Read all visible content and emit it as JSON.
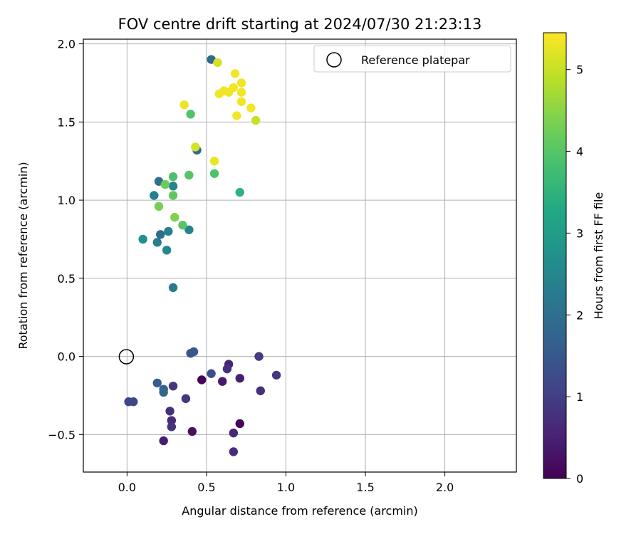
{
  "chart_data": {
    "type": "scatter",
    "title": "FOV centre drift starting at 2024/07/30 21:23:13",
    "xlabel": "Angular distance from reference (arcmin)",
    "ylabel": "Rotation from reference (arcmin)",
    "xlim": [
      -0.275,
      2.45
    ],
    "ylim": [
      -0.74,
      2.03
    ],
    "xticks": [
      0.0,
      0.5,
      1.0,
      1.5,
      2.0
    ],
    "xtick_labels": [
      "0.0",
      "0.5",
      "1.0",
      "1.5",
      "2.0"
    ],
    "yticks": [
      -0.5,
      0.0,
      0.5,
      1.0,
      1.5,
      2.0
    ],
    "ytick_labels": [
      "−0.5",
      "0.0",
      "0.5",
      "1.0",
      "1.5",
      "2.0"
    ],
    "grid": true,
    "legend": {
      "placement": "top-right",
      "entries": [
        "Reference platepar"
      ]
    },
    "reference_point": {
      "x": 0.0,
      "y": 0.0
    },
    "colorbar": {
      "label": "Hours from first FF file",
      "colormap": "viridis",
      "range": [
        0,
        5.45
      ],
      "ticks": [
        0,
        1,
        2,
        3,
        4,
        5
      ],
      "tick_labels": [
        "0",
        "1",
        "2",
        "3",
        "4",
        "5"
      ]
    },
    "points": [
      {
        "x": 0.47,
        "y": -0.15,
        "h": 0.05
      },
      {
        "x": 0.71,
        "y": -0.43,
        "h": 0.1
      },
      {
        "x": 0.41,
        "y": -0.48,
        "h": 0.25
      },
      {
        "x": 0.6,
        "y": -0.16,
        "h": 0.4
      },
      {
        "x": 0.23,
        "y": -0.54,
        "h": 0.45
      },
      {
        "x": 0.71,
        "y": -0.14,
        "h": 0.45
      },
      {
        "x": 0.64,
        "y": -0.05,
        "h": 0.55
      },
      {
        "x": 0.67,
        "y": -0.49,
        "h": 0.6
      },
      {
        "x": 0.28,
        "y": -0.41,
        "h": 0.65
      },
      {
        "x": 0.67,
        "y": -0.61,
        "h": 0.7
      },
      {
        "x": 0.27,
        "y": -0.35,
        "h": 0.75
      },
      {
        "x": 0.63,
        "y": -0.08,
        "h": 0.75
      },
      {
        "x": 0.84,
        "y": -0.22,
        "h": 0.75
      },
      {
        "x": 0.28,
        "y": -0.45,
        "h": 0.8
      },
      {
        "x": 0.37,
        "y": -0.27,
        "h": 0.85
      },
      {
        "x": 0.29,
        "y": -0.19,
        "h": 0.85
      },
      {
        "x": 0.94,
        "y": -0.12,
        "h": 0.9
      },
      {
        "x": 0.83,
        "y": 0.0,
        "h": 0.95
      },
      {
        "x": 0.01,
        "y": -0.29,
        "h": 1.1
      },
      {
        "x": 0.04,
        "y": -0.29,
        "h": 1.15
      },
      {
        "x": 0.53,
        "y": -0.11,
        "h": 1.3
      },
      {
        "x": 0.4,
        "y": 0.02,
        "h": 1.4
      },
      {
        "x": 0.42,
        "y": 0.03,
        "h": 1.5
      },
      {
        "x": 0.19,
        "y": -0.17,
        "h": 1.6
      },
      {
        "x": 0.23,
        "y": -0.21,
        "h": 1.7
      },
      {
        "x": 0.23,
        "y": -0.23,
        "h": 1.8
      },
      {
        "x": 0.53,
        "y": 1.9,
        "h": 1.85
      },
      {
        "x": 0.44,
        "y": 1.32,
        "h": 1.9
      },
      {
        "x": 0.21,
        "y": 0.78,
        "h": 1.95
      },
      {
        "x": 0.2,
        "y": 1.12,
        "h": 2.0
      },
      {
        "x": 0.29,
        "y": 0.44,
        "h": 2.2
      },
      {
        "x": 0.19,
        "y": 0.73,
        "h": 2.3
      },
      {
        "x": 0.17,
        "y": 1.03,
        "h": 2.35
      },
      {
        "x": 0.26,
        "y": 0.8,
        "h": 2.4
      },
      {
        "x": 0.39,
        "y": 0.81,
        "h": 2.4
      },
      {
        "x": 0.29,
        "y": 1.09,
        "h": 2.45
      },
      {
        "x": 0.25,
        "y": 0.68,
        "h": 2.55
      },
      {
        "x": 0.1,
        "y": 0.75,
        "h": 2.7
      },
      {
        "x": 0.71,
        "y": 1.05,
        "h": 3.5
      },
      {
        "x": 0.29,
        "y": 1.15,
        "h": 3.9
      },
      {
        "x": 0.55,
        "y": 1.17,
        "h": 3.9
      },
      {
        "x": 0.4,
        "y": 1.55,
        "h": 3.95
      },
      {
        "x": 0.39,
        "y": 1.16,
        "h": 4.0
      },
      {
        "x": 0.35,
        "y": 0.84,
        "h": 4.0
      },
      {
        "x": 0.29,
        "y": 1.03,
        "h": 4.1
      },
      {
        "x": 0.24,
        "y": 1.1,
        "h": 4.2
      },
      {
        "x": 0.2,
        "y": 0.96,
        "h": 4.3
      },
      {
        "x": 0.3,
        "y": 0.89,
        "h": 4.4
      },
      {
        "x": 0.81,
        "y": 1.51,
        "h": 5.0
      },
      {
        "x": 0.43,
        "y": 1.34,
        "h": 5.1
      },
      {
        "x": 0.57,
        "y": 1.88,
        "h": 5.1
      },
      {
        "x": 0.55,
        "y": 1.25,
        "h": 5.3
      },
      {
        "x": 0.36,
        "y": 1.61,
        "h": 5.3
      },
      {
        "x": 0.58,
        "y": 1.68,
        "h": 5.35
      },
      {
        "x": 0.61,
        "y": 1.7,
        "h": 5.35
      },
      {
        "x": 0.64,
        "y": 1.69,
        "h": 5.35
      },
      {
        "x": 0.67,
        "y": 1.72,
        "h": 5.35
      },
      {
        "x": 0.68,
        "y": 1.81,
        "h": 5.35
      },
      {
        "x": 0.72,
        "y": 1.75,
        "h": 5.35
      },
      {
        "x": 0.72,
        "y": 1.69,
        "h": 5.35
      },
      {
        "x": 0.72,
        "y": 1.63,
        "h": 5.35
      },
      {
        "x": 0.69,
        "y": 1.54,
        "h": 5.35
      },
      {
        "x": 0.78,
        "y": 1.59,
        "h": 5.35
      }
    ]
  }
}
